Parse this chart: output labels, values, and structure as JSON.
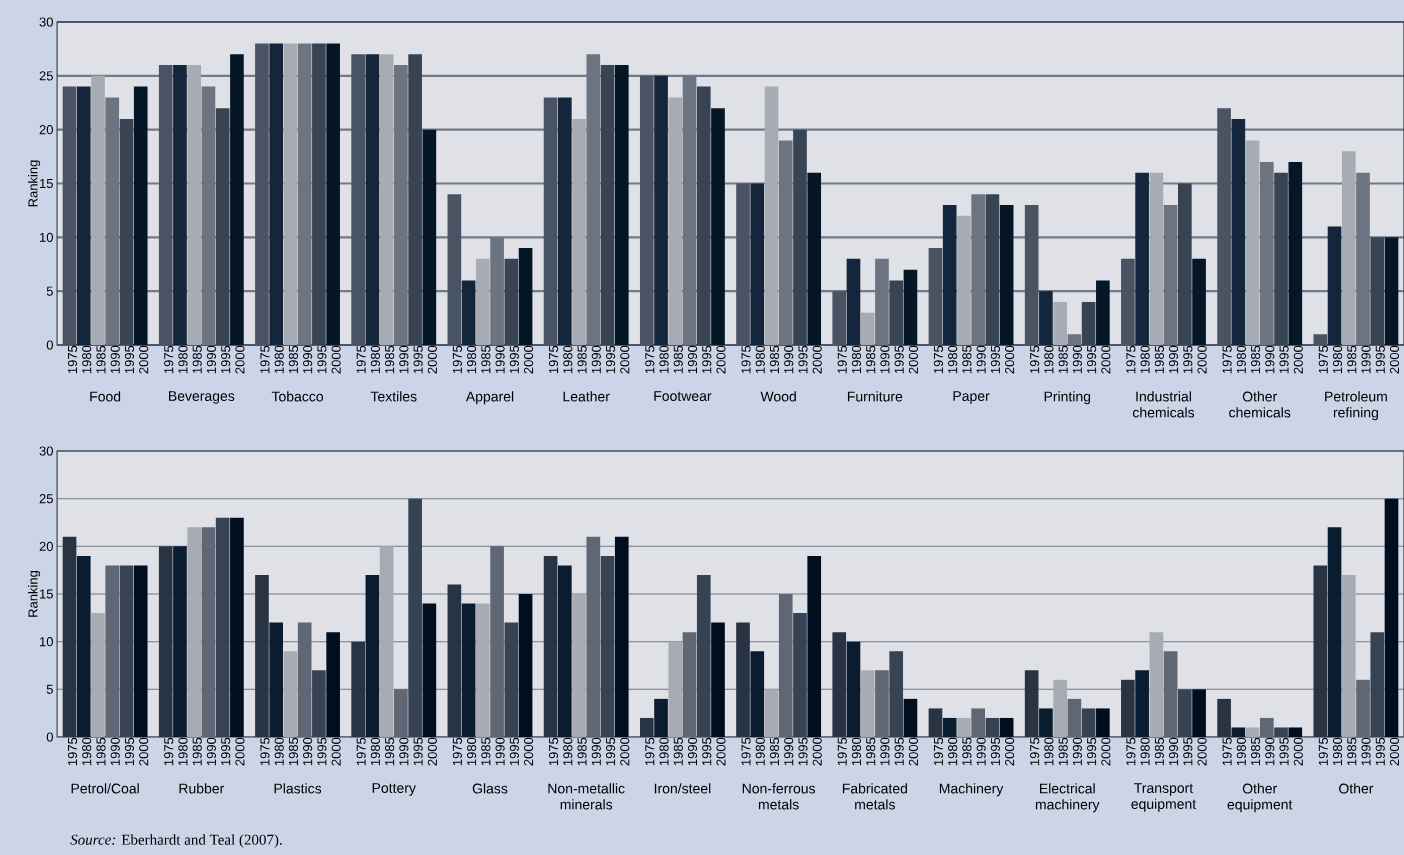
{
  "chart_data": [
    {
      "type": "bar",
      "ylabel": "Ranking",
      "categories": [
        "Food",
        "Beverages",
        "Tobacco",
        "Textiles",
        "Apparel",
        "Leather",
        "Footwear",
        "Wood",
        "Furniture",
        "Paper",
        "Printing",
        "Industrial chemicals",
        "Other chemicals",
        "Petroleum refining"
      ],
      "series": [
        {
          "name": "1975",
          "color": "#4a5363",
          "values": [
            24,
            26,
            28,
            27,
            14,
            23,
            25,
            15,
            5,
            9,
            13,
            8,
            22,
            1
          ]
        },
        {
          "name": "1980",
          "color": "#13263b",
          "values": [
            24,
            26,
            28,
            27,
            6,
            23,
            25,
            15,
            8,
            13,
            5,
            16,
            21,
            11
          ]
        },
        {
          "name": "1985",
          "color": "#a7abb4",
          "values": [
            25,
            26,
            28,
            27,
            8,
            21,
            23,
            24,
            3,
            12,
            4,
            16,
            19,
            18
          ]
        },
        {
          "name": "1990",
          "color": "#6b7480",
          "values": [
            23,
            24,
            28,
            26,
            10,
            27,
            25,
            19,
            8,
            14,
            1,
            13,
            17,
            16
          ]
        },
        {
          "name": "1995",
          "color": "#384354",
          "values": [
            21,
            22,
            28,
            27,
            8,
            26,
            24,
            20,
            6,
            14,
            4,
            15,
            16,
            10
          ]
        },
        {
          "name": "2000",
          "color": "#051727",
          "values": [
            24,
            27,
            28,
            20,
            9,
            26,
            22,
            16,
            7,
            13,
            6,
            8,
            17,
            10
          ]
        }
      ],
      "ylim": [
        0,
        30
      ],
      "yticks": [
        0,
        5,
        10,
        15,
        20,
        25,
        30
      ],
      "grid": "y"
    },
    {
      "type": "bar",
      "ylabel": "Ranking",
      "categories": [
        "Petrol/Coal",
        "Rubber",
        "Plastics",
        "Pottery",
        "Glass",
        "Non-metallic minerals",
        "Iron/steel",
        "Non-ferrous metals",
        "Fabricated metals",
        "Machinery",
        "Electrical machinery",
        "Transport equipment",
        "Other equipment",
        "Other"
      ],
      "series": [
        {
          "name": "1975",
          "color": "#283444",
          "values": [
            21,
            20,
            17,
            10,
            16,
            19,
            2,
            12,
            11,
            3,
            7,
            6,
            4,
            18
          ]
        },
        {
          "name": "1980",
          "color": "#0a1c30",
          "values": [
            19,
            20,
            12,
            17,
            14,
            18,
            4,
            9,
            10,
            2,
            3,
            7,
            1,
            22
          ]
        },
        {
          "name": "1985",
          "color": "#a7abb4",
          "values": [
            13,
            22,
            9,
            20,
            14,
            15,
            10,
            5,
            7,
            2,
            6,
            11,
            1,
            17
          ]
        },
        {
          "name": "1990",
          "color": "#5f6674",
          "values": [
            18,
            22,
            12,
            5,
            20,
            21,
            11,
            15,
            7,
            3,
            4,
            9,
            2,
            6
          ]
        },
        {
          "name": "1995",
          "color": "#364354",
          "values": [
            18,
            23,
            7,
            25,
            12,
            19,
            17,
            13,
            9,
            2,
            3,
            5,
            1,
            11
          ]
        },
        {
          "name": "2000",
          "color": "#000e20",
          "values": [
            18,
            23,
            11,
            14,
            15,
            21,
            12,
            19,
            4,
            2,
            3,
            5,
            1,
            25
          ]
        }
      ],
      "ylim": [
        0,
        30
      ],
      "yticks": [
        0,
        5,
        10,
        15,
        20,
        25,
        30
      ],
      "grid": "y",
      "annotations": [
        "*Source:* Eberhardt and Teal (2007)."
      ]
    }
  ]
}
